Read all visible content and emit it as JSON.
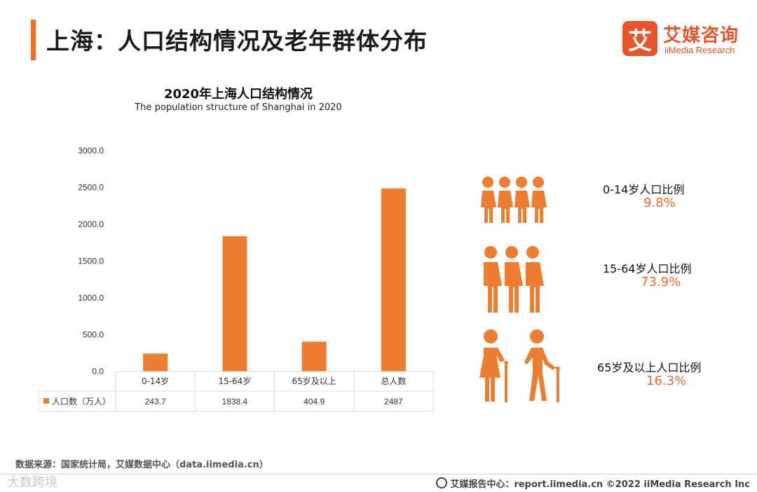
{
  "page": {
    "title": "上海：人口结构情况及老年群体分布"
  },
  "logo": {
    "mark": "艾",
    "name_cn": "艾媒咨询",
    "name_en": "iiMedia Research"
  },
  "colors": {
    "accent": "#ee6b32",
    "bar": "#ed7d31",
    "grid": "#d9d9d9",
    "text": "#222222"
  },
  "chart_data": {
    "type": "bar",
    "title": "2020年上海人口结构情况",
    "subtitle": "The population structure of Shanghai in 2020",
    "categories": [
      "0-14岁",
      "15-64岁",
      "65岁及以上",
      "总人数"
    ],
    "series": [
      {
        "name": "人口数（万人）",
        "values": [
          243.7,
          1838.4,
          404.9,
          2487
        ],
        "display_values": [
          "243.7",
          "1838.4",
          "404.9",
          "2487"
        ]
      }
    ],
    "ylim": [
      0,
      3000
    ],
    "yticks": [
      0,
      500,
      1000,
      1500,
      2000,
      2500,
      3000
    ],
    "ytick_labels": [
      "0.0",
      "500.0",
      "1000.0",
      "1500.0",
      "2000.0",
      "2500.0",
      "3000.0"
    ],
    "xlabel": "",
    "ylabel": "",
    "legend": "data-table-left",
    "grid": false
  },
  "stats": [
    {
      "label": "0-14岁人口比例",
      "value": "9.8%",
      "icon": "children-icon"
    },
    {
      "label": "15-64岁人口比例",
      "value": "73.9%",
      "icon": "adults-icon"
    },
    {
      "label": "65岁及以上人口比例",
      "value": "16.3%",
      "icon": "elderly-icon"
    }
  ],
  "source": {
    "text": "数据来源：国家统计局，艾媒数据中心（data.iimedia.cn）"
  },
  "footer": {
    "watermark": "大数跨境",
    "right_text": "艾媒报告中心：report.iimedia.cn   ©2022  iiMedia Research  Inc"
  }
}
